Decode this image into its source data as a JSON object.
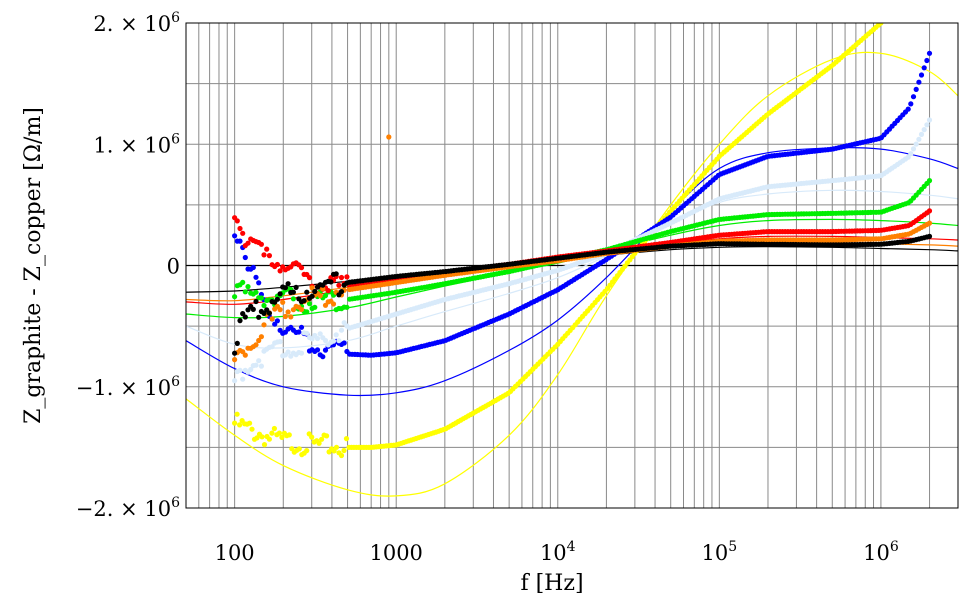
{
  "chart_data": {
    "type": "scatter",
    "xlabel": "f [Hz]",
    "ylabel": "Z_graphite - Z_copper [Ω/m]",
    "xscale": "log",
    "xlim": [
      50,
      3000000
    ],
    "ylim": [
      -2000000,
      2000000
    ],
    "grid": true,
    "legend": "none",
    "x_tick_labels": [
      {
        "value": 100,
        "label": "100"
      },
      {
        "value": 1000,
        "label": "1000"
      },
      {
        "value": 10000,
        "label": "10",
        "exp": "4"
      },
      {
        "value": 100000,
        "label": "10",
        "exp": "5"
      },
      {
        "value": 1000000,
        "label": "10",
        "exp": "6"
      }
    ],
    "y_tick_labels": [
      {
        "value": 2000000,
        "label": "2. × 10",
        "exp": "6"
      },
      {
        "value": 1000000,
        "label": "1. × 10",
        "exp": "6"
      },
      {
        "value": 0,
        "label": "0",
        "exp": ""
      },
      {
        "value": -1000000,
        "label": "−1. × 10",
        "exp": "6"
      },
      {
        "value": -2000000,
        "label": "−2. × 10",
        "exp": "6"
      }
    ],
    "series": [
      {
        "color": "#ffff00",
        "measured": {
          "x": [
            100,
            120,
            150,
            200,
            300,
            500,
            700,
            1000,
            2000,
            5000,
            10000,
            20000,
            30000,
            50000,
            100000,
            200000,
            500000,
            1000000
          ],
          "y": [
            -1300000,
            -1350000,
            -1400000,
            -1450000,
            -1480000,
            -1500000,
            -1500000,
            -1480000,
            -1350000,
            -1050000,
            -650000,
            -200000,
            100000,
            450000,
            900000,
            1250000,
            1650000,
            2000000
          ]
        },
        "model": {
          "x": [
            50,
            100,
            200,
            500,
            1000,
            2000,
            5000,
            10000,
            20000,
            50000,
            100000,
            200000,
            500000,
            1000000,
            2000000,
            3000000
          ],
          "y": [
            -1100000,
            -1400000,
            -1650000,
            -1850000,
            -1900000,
            -1800000,
            -1400000,
            -900000,
            -250000,
            500000,
            1000000,
            1400000,
            1700000,
            1750000,
            1600000,
            1400000
          ]
        }
      },
      {
        "color": "#0000ff",
        "measured": {
          "x": [
            100,
            110,
            130,
            150,
            200,
            300,
            500,
            700,
            1000,
            2000,
            5000,
            10000,
            20000,
            50000,
            100000,
            200000,
            500000,
            1000000,
            1500000,
            2000000
          ],
          "y": [
            300000,
            200000,
            -100000,
            -300000,
            -500000,
            -650000,
            -730000,
            -740000,
            -720000,
            -620000,
            -400000,
            -200000,
            50000,
            400000,
            750000,
            900000,
            960000,
            1050000,
            1300000,
            1750000
          ]
        },
        "model": {
          "x": [
            50,
            100,
            200,
            500,
            1000,
            2000,
            5000,
            10000,
            20000,
            50000,
            100000,
            200000,
            500000,
            1000000,
            2000000,
            3000000
          ],
          "y": [
            -620000,
            -850000,
            -1000000,
            -1070000,
            -1050000,
            -950000,
            -700000,
            -450000,
            -100000,
            450000,
            800000,
            930000,
            970000,
            960000,
            880000,
            800000
          ]
        }
      },
      {
        "color": "#d8eafa",
        "measured": {
          "x": [
            100,
            120,
            150,
            200,
            300,
            500,
            1000,
            2000,
            5000,
            10000,
            20000,
            50000,
            100000,
            200000,
            500000,
            1000000,
            1500000,
            2000000
          ],
          "y": [
            -950000,
            -820000,
            -760000,
            -700000,
            -620000,
            -520000,
            -400000,
            -280000,
            -150000,
            -40000,
            100000,
            350000,
            550000,
            650000,
            700000,
            740000,
            900000,
            1200000
          ]
        },
        "model": {
          "x": [
            50,
            100,
            200,
            500,
            1000,
            2000,
            5000,
            10000,
            20000,
            50000,
            100000,
            200000,
            500000,
            1000000,
            2000000,
            3000000
          ],
          "y": [
            -500000,
            -650000,
            -680000,
            -620000,
            -500000,
            -380000,
            -230000,
            -100000,
            80000,
            350000,
            520000,
            590000,
            620000,
            610000,
            580000,
            550000
          ]
        }
      },
      {
        "color": "#00ee00",
        "measured": {
          "x": [
            100,
            120,
            150,
            200,
            300,
            500,
            1000,
            2000,
            5000,
            10000,
            20000,
            50000,
            100000,
            200000,
            500000,
            1000000,
            1500000,
            2000000
          ],
          "y": [
            -200000,
            -230000,
            -250000,
            -280000,
            -300000,
            -280000,
            -220000,
            -150000,
            -50000,
            40000,
            130000,
            280000,
            380000,
            420000,
            430000,
            440000,
            520000,
            700000
          ]
        },
        "model": {
          "x": [
            50,
            100,
            200,
            500,
            1000,
            2000,
            5000,
            10000,
            20000,
            50000,
            100000,
            200000,
            500000,
            1000000,
            2000000,
            3000000
          ],
          "y": [
            -400000,
            -430000,
            -420000,
            -350000,
            -260000,
            -170000,
            -60000,
            20000,
            120000,
            250000,
            330000,
            370000,
            380000,
            370000,
            350000,
            330000
          ]
        }
      },
      {
        "color": "#ff0000",
        "measured": {
          "x": [
            100,
            110,
            130,
            150,
            200,
            300,
            400,
            500,
            1000,
            2000,
            5000,
            10000,
            20000,
            50000,
            100000,
            200000,
            500000,
            1000000,
            1500000,
            2000000
          ],
          "y": [
            450000,
            300000,
            150000,
            80000,
            0,
            -130000,
            -170000,
            -170000,
            -120000,
            -60000,
            10000,
            70000,
            120000,
            190000,
            250000,
            280000,
            280000,
            290000,
            330000,
            450000
          ]
        },
        "model": {
          "x": [
            50,
            100,
            200,
            500,
            1000,
            2000,
            5000,
            10000,
            20000,
            50000,
            100000,
            200000,
            500000,
            1000000,
            2000000,
            3000000
          ],
          "y": [
            -300000,
            -320000,
            -280000,
            -200000,
            -140000,
            -80000,
            -10000,
            50000,
            110000,
            180000,
            220000,
            240000,
            240000,
            230000,
            220000,
            210000
          ]
        }
      },
      {
        "color": "#ff8000",
        "measured": {
          "x": [
            100,
            120,
            150,
            200,
            300,
            500,
            1000,
            2000,
            5000,
            10000,
            20000,
            50000,
            100000,
            200000,
            500000,
            1000000,
            1500000,
            2000000
          ],
          "y": [
            -850000,
            -650000,
            -500000,
            -380000,
            -270000,
            -200000,
            -140000,
            -80000,
            -10000,
            40000,
            100000,
            160000,
            200000,
            210000,
            210000,
            220000,
            260000,
            350000
          ]
        },
        "model": {
          "x": [
            50,
            100,
            200,
            500,
            1000,
            2000,
            5000,
            10000,
            20000,
            50000,
            100000,
            200000,
            500000,
            1000000,
            2000000,
            3000000
          ],
          "y": [
            -280000,
            -290000,
            -250000,
            -180000,
            -120000,
            -70000,
            -10000,
            40000,
            95000,
            150000,
            180000,
            190000,
            190000,
            180000,
            170000,
            160000
          ]
        }
      },
      {
        "color": "#000000",
        "measured": {
          "x": [
            100,
            110,
            130,
            150,
            200,
            300,
            500,
            1000,
            2000,
            5000,
            10000,
            20000,
            50000,
            100000,
            200000,
            500000,
            1000000,
            1500000,
            2000000
          ],
          "y": [
            -650000,
            -450000,
            -380000,
            -330000,
            -250000,
            -190000,
            -140000,
            -90000,
            -50000,
            10000,
            60000,
            110000,
            160000,
            180000,
            175000,
            170000,
            175000,
            200000,
            240000
          ]
        },
        "model": {
          "x": [
            50,
            100,
            200,
            500,
            1000,
            2000,
            5000,
            10000,
            20000,
            50000,
            100000,
            200000,
            500000,
            1000000,
            2000000,
            3000000
          ],
          "y": [
            -220000,
            -210000,
            -180000,
            -130000,
            -90000,
            -50000,
            0,
            40000,
            85000,
            130000,
            150000,
            155000,
            150000,
            140000,
            130000,
            120000
          ]
        }
      },
      {
        "color": "#ff8000",
        "measured": {
          "x": [
            900
          ],
          "y": [
            1060000
          ]
        },
        "model": {
          "x": [],
          "y": []
        }
      }
    ]
  }
}
